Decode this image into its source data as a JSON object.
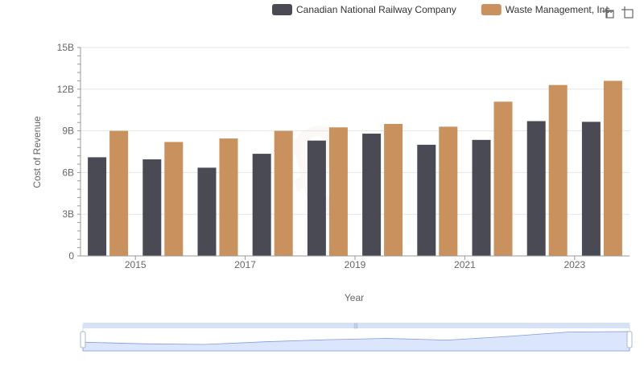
{
  "chart_data": {
    "type": "bar",
    "xlabel": "Year",
    "ylabel": "Cost of Revenue",
    "ylim": [
      0,
      15
    ],
    "yticks": [
      0,
      3,
      6,
      9,
      12,
      15
    ],
    "ytick_labels": [
      "0",
      "3B",
      "6B",
      "9B",
      "12B",
      "15B"
    ],
    "categories": [
      "2014",
      "2015",
      "2016",
      "2017",
      "2018",
      "2019",
      "2020",
      "2021",
      "2022",
      "2023"
    ],
    "xtick_labels": [
      "2015",
      "2017",
      "2019",
      "2021",
      "2023"
    ],
    "grid": true,
    "legend_position": "top-right",
    "series": [
      {
        "name": "Canadian National Railway Company",
        "color": "#4a4a55",
        "values": [
          7.1,
          6.95,
          6.35,
          7.35,
          8.3,
          8.8,
          8.0,
          8.35,
          9.7,
          9.65
        ]
      },
      {
        "name": "Waste Management, Inc.",
        "color": "#c8915d",
        "values": [
          9.0,
          8.2,
          8.45,
          9.0,
          9.25,
          9.5,
          9.3,
          11.1,
          12.3,
          12.6
        ]
      }
    ]
  },
  "toolbar": {
    "zoom_icon": "zoom-icon",
    "restore_icon": "restore-icon"
  },
  "navigator": {
    "fill_color": "#dbe5fb",
    "line_color": "#7d9be6"
  }
}
